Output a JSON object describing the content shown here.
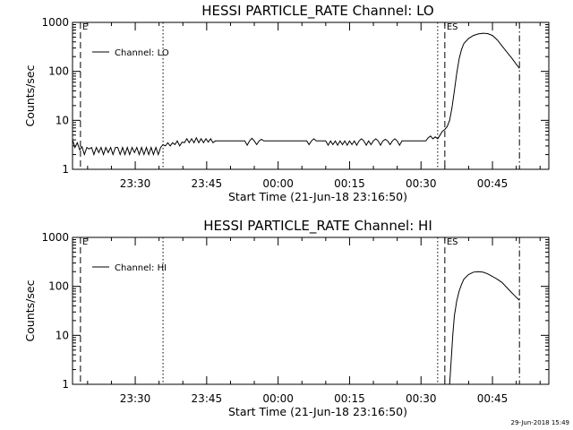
{
  "page": {
    "footer_stamp": "29-Jun-2018 15:49"
  },
  "chart_data": [
    {
      "type": "line",
      "title": "HESSI PARTICLE_RATE Channel: LO",
      "xlabel": "Start Time (21-Jun-18 23:16:50)",
      "ylabel": "Counts/sec",
      "yscale": "log",
      "ylim": [
        1,
        1000
      ],
      "xlim": [
        "23:16:50",
        "00:56:50"
      ],
      "yticks": [
        "1",
        "10",
        "100",
        "1000"
      ],
      "xticks": [
        "23:30",
        "23:45",
        "00:00",
        "00:15",
        "00:30",
        "00:45"
      ],
      "legend": {
        "label": "Channel: LO",
        "position": "top-left"
      },
      "markers": [
        {
          "time": "23:18:30",
          "style": "dashed",
          "label": "E"
        },
        {
          "time": "23:35:50",
          "style": "dotted",
          "label": ""
        },
        {
          "time": "00:33:30",
          "style": "dotted",
          "label": ""
        },
        {
          "time": "00:35:00",
          "style": "dashed",
          "label": "ES"
        },
        {
          "time": "00:50:40",
          "style": "dash-dot",
          "label": ""
        }
      ],
      "series": [
        {
          "name": "Channel: LO",
          "points": [
            [
              "23:16:50",
              4.0
            ],
            [
              "23:17:20",
              2.8
            ],
            [
              "23:17:50",
              3.5
            ],
            [
              "23:18:20",
              2.5
            ],
            [
              "23:18:50",
              2.9
            ],
            [
              "23:19:20",
              2.0
            ],
            [
              "23:19:50",
              2.8
            ],
            [
              "23:20:20",
              2.6
            ],
            [
              "23:20:50",
              2.8
            ],
            [
              "23:21:20",
              2.0
            ],
            [
              "23:21:50",
              2.8
            ],
            [
              "23:22:20",
              2.2
            ],
            [
              "23:22:50",
              2.8
            ],
            [
              "23:23:20",
              2.0
            ],
            [
              "23:23:50",
              2.8
            ],
            [
              "23:24:20",
              2.2
            ],
            [
              "23:24:50",
              2.8
            ],
            [
              "23:25:20",
              2.0
            ],
            [
              "23:25:50",
              2.8
            ],
            [
              "23:26:20",
              2.8
            ],
            [
              "23:26:50",
              2.0
            ],
            [
              "23:27:20",
              2.8
            ],
            [
              "23:27:50",
              2.0
            ],
            [
              "23:28:20",
              2.8
            ],
            [
              "23:28:50",
              2.0
            ],
            [
              "23:29:20",
              2.8
            ],
            [
              "23:29:50",
              2.2
            ],
            [
              "23:30:20",
              2.8
            ],
            [
              "23:30:50",
              2.0
            ],
            [
              "23:31:20",
              2.8
            ],
            [
              "23:31:50",
              2.0
            ],
            [
              "23:32:20",
              2.8
            ],
            [
              "23:32:50",
              2.0
            ],
            [
              "23:33:20",
              2.8
            ],
            [
              "23:33:50",
              2.0
            ],
            [
              "23:34:20",
              2.8
            ],
            [
              "23:34:50",
              2.0
            ],
            [
              "23:35:20",
              2.8
            ],
            [
              "23:35:50",
              3.2
            ],
            [
              "23:36:20",
              3.0
            ],
            [
              "23:36:50",
              3.5
            ],
            [
              "23:37:20",
              3.0
            ],
            [
              "23:37:50",
              3.5
            ],
            [
              "23:38:20",
              3.2
            ],
            [
              "23:38:50",
              3.8
            ],
            [
              "23:39:20",
              3.0
            ],
            [
              "23:39:50",
              3.6
            ],
            [
              "23:40:20",
              3.5
            ],
            [
              "23:40:50",
              4.2
            ],
            [
              "23:41:20",
              3.5
            ],
            [
              "23:41:50",
              4.2
            ],
            [
              "23:42:20",
              3.5
            ],
            [
              "23:42:50",
              4.4
            ],
            [
              "23:43:20",
              3.5
            ],
            [
              "23:43:50",
              4.2
            ],
            [
              "23:44:20",
              3.5
            ],
            [
              "23:44:50",
              4.2
            ],
            [
              "23:45:20",
              3.6
            ],
            [
              "23:45:50",
              4.2
            ],
            [
              "23:46:20",
              3.5
            ],
            [
              "23:46:50",
              3.8
            ],
            [
              "23:48:00",
              3.8
            ],
            [
              "23:50:00",
              3.8
            ],
            [
              "23:53:00",
              3.8
            ],
            [
              "23:53:30",
              3.1
            ],
            [
              "23:54:00",
              3.8
            ],
            [
              "23:54:30",
              4.3
            ],
            [
              "23:55:00",
              3.8
            ],
            [
              "23:55:30",
              3.2
            ],
            [
              "23:56:00",
              3.8
            ],
            [
              "23:56:30",
              4.1
            ],
            [
              "23:57:00",
              3.8
            ],
            [
              "00:00:00",
              3.8
            ],
            [
              "00:06:00",
              3.8
            ],
            [
              "00:06:30",
              3.2
            ],
            [
              "00:07:00",
              3.8
            ],
            [
              "00:07:30",
              4.2
            ],
            [
              "00:08:00",
              3.8
            ],
            [
              "00:10:00",
              3.8
            ],
            [
              "00:10:30",
              3.1
            ],
            [
              "00:11:00",
              3.8
            ],
            [
              "00:11:30",
              3.2
            ],
            [
              "00:12:00",
              3.8
            ],
            [
              "00:12:30",
              3.1
            ],
            [
              "00:13:00",
              3.8
            ],
            [
              "00:13:30",
              3.2
            ],
            [
              "00:14:00",
              3.8
            ],
            [
              "00:14:30",
              3.1
            ],
            [
              "00:15:00",
              3.8
            ],
            [
              "00:15:30",
              3.2
            ],
            [
              "00:16:00",
              3.8
            ],
            [
              "00:16:30",
              3.1
            ],
            [
              "00:17:00",
              3.8
            ],
            [
              "00:17:30",
              4.2
            ],
            [
              "00:18:00",
              3.8
            ],
            [
              "00:18:30",
              3.1
            ],
            [
              "00:19:00",
              3.8
            ],
            [
              "00:19:30",
              3.2
            ],
            [
              "00:20:00",
              3.8
            ],
            [
              "00:20:30",
              4.2
            ],
            [
              "00:21:00",
              3.8
            ],
            [
              "00:21:30",
              3.1
            ],
            [
              "00:22:00",
              3.8
            ],
            [
              "00:22:30",
              4.1
            ],
            [
              "00:23:00",
              3.8
            ],
            [
              "00:23:30",
              3.2
            ],
            [
              "00:24:00",
              3.8
            ],
            [
              "00:24:30",
              4.2
            ],
            [
              "00:25:00",
              3.8
            ],
            [
              "00:25:30",
              3.1
            ],
            [
              "00:26:00",
              3.8
            ],
            [
              "00:30:00",
              3.8
            ],
            [
              "00:31:00",
              3.8
            ],
            [
              "00:31:30",
              4.4
            ],
            [
              "00:32:00",
              4.8
            ],
            [
              "00:32:30",
              4.2
            ],
            [
              "00:33:00",
              4.6
            ],
            [
              "00:33:30",
              4.2
            ],
            [
              "00:34:00",
              5.0
            ],
            [
              "00:34:30",
              6.0
            ],
            [
              "00:35:00",
              6.5
            ],
            [
              "00:35:30",
              7.5
            ],
            [
              "00:36:00",
              10
            ],
            [
              "00:36:30",
              18
            ],
            [
              "00:37:00",
              40
            ],
            [
              "00:37:30",
              90
            ],
            [
              "00:38:00",
              180
            ],
            [
              "00:38:30",
              280
            ],
            [
              "00:39:00",
              370
            ],
            [
              "00:40:00",
              470
            ],
            [
              "00:41:00",
              540
            ],
            [
              "00:42:00",
              580
            ],
            [
              "00:43:00",
              600
            ],
            [
              "00:44:00",
              590
            ],
            [
              "00:45:00",
              540
            ],
            [
              "00:46:00",
              440
            ],
            [
              "00:47:00",
              330
            ],
            [
              "00:48:00",
              250
            ],
            [
              "00:49:00",
              190
            ],
            [
              "00:50:00",
              140
            ],
            [
              "00:50:40",
              115
            ]
          ]
        }
      ]
    },
    {
      "type": "line",
      "title": "HESSI PARTICLE_RATE Channel: HI",
      "xlabel": "Start Time (21-Jun-18 23:16:50)",
      "ylabel": "Counts/sec",
      "yscale": "log",
      "ylim": [
        1,
        1000
      ],
      "xlim": [
        "23:16:50",
        "00:56:50"
      ],
      "yticks": [
        "1",
        "10",
        "100",
        "1000"
      ],
      "xticks": [
        "23:30",
        "23:45",
        "00:00",
        "00:15",
        "00:30",
        "00:45"
      ],
      "legend": {
        "label": "Channel: HI",
        "position": "top-left"
      },
      "markers": [
        {
          "time": "23:18:30",
          "style": "dashed",
          "label": "E"
        },
        {
          "time": "23:35:50",
          "style": "dotted",
          "label": ""
        },
        {
          "time": "00:33:30",
          "style": "dotted",
          "label": ""
        },
        {
          "time": "00:35:00",
          "style": "dashed",
          "label": "ES"
        },
        {
          "time": "00:50:40",
          "style": "dash-dot",
          "label": ""
        }
      ],
      "series": [
        {
          "name": "Channel: HI",
          "points": [
            [
              "00:36:00",
              1.0
            ],
            [
              "00:36:20",
              3
            ],
            [
              "00:36:40",
              10
            ],
            [
              "00:37:00",
              25
            ],
            [
              "00:37:30",
              50
            ],
            [
              "00:38:00",
              80
            ],
            [
              "00:38:30",
              110
            ],
            [
              "00:39:00",
              140
            ],
            [
              "00:40:00",
              175
            ],
            [
              "00:41:00",
              195
            ],
            [
              "00:42:00",
              200
            ],
            [
              "00:43:00",
              195
            ],
            [
              "00:44:00",
              180
            ],
            [
              "00:45:00",
              160
            ],
            [
              "00:46:00",
              140
            ],
            [
              "00:47:00",
              120
            ],
            [
              "00:48:00",
              95
            ],
            [
              "00:49:00",
              75
            ],
            [
              "00:50:00",
              60
            ],
            [
              "00:50:40",
              52
            ]
          ]
        }
      ]
    }
  ]
}
